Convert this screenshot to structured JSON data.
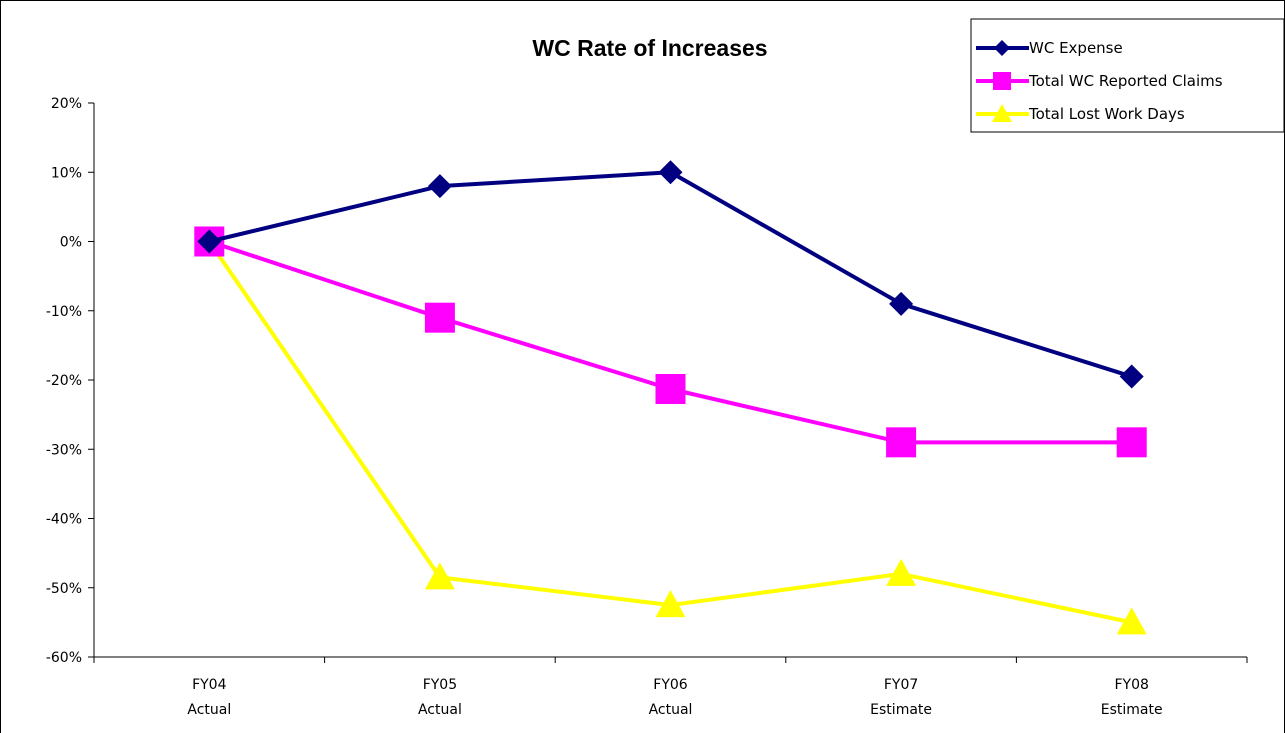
{
  "chart_data": {
    "type": "line",
    "title": "WC Rate of Increases",
    "xlabel": "",
    "ylabel": "",
    "categories": [
      [
        "FY04",
        "Actual"
      ],
      [
        "FY05",
        "Actual"
      ],
      [
        "FY06",
        "Actual"
      ],
      [
        "FY07",
        "Estimate"
      ],
      [
        "FY08",
        "Estimate"
      ]
    ],
    "ylim": [
      -60,
      20
    ],
    "yticks": [
      20,
      10,
      0,
      -10,
      -20,
      -30,
      -40,
      -50,
      -60
    ],
    "ytick_labels": [
      "20%",
      "10%",
      "0%",
      "-10%",
      "-20%",
      "-30%",
      "-40%",
      "-50%",
      "-60%"
    ],
    "grid": false,
    "legend_position": "top-right",
    "series": [
      {
        "name": "WC Expense",
        "color": "#000080",
        "marker": "diamond",
        "values": [
          0,
          8,
          10,
          -9,
          -19.5
        ]
      },
      {
        "name": "Total WC Reported Claims",
        "color": "#ff00ff",
        "marker": "square",
        "values": [
          0,
          -11,
          -21.3,
          -29,
          -29
        ]
      },
      {
        "name": "Total Lost Work Days",
        "color": "#ffff00",
        "marker": "triangle",
        "values": [
          0,
          -48.5,
          -52.5,
          -48,
          -55
        ]
      }
    ]
  }
}
